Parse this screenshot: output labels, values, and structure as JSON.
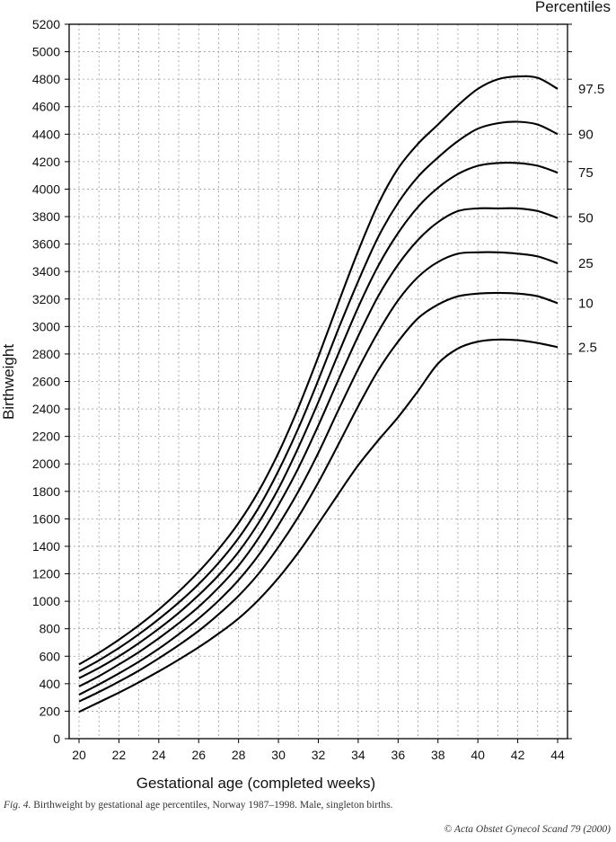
{
  "figure": {
    "caption_prefix": "Fig. 4.",
    "caption_text": "Birthweight by gestational age percentiles, Norway 1987–1998. Male, singleton births.",
    "copyright": "© Acta Obstet Gynecol Scand 79 (2000)"
  },
  "chart_data": {
    "type": "line",
    "xlabel": "Gestational age (completed weeks)",
    "ylabel": "Birthweight",
    "legend_title": "Percentiles",
    "legend_placement": "right",
    "grid": true,
    "xlim": [
      20,
      44
    ],
    "ylim": [
      0,
      5200
    ],
    "xticks": [
      20,
      22,
      24,
      26,
      28,
      30,
      32,
      34,
      36,
      38,
      40,
      42,
      44
    ],
    "yticks": [
      0,
      200,
      400,
      600,
      800,
      1000,
      1200,
      1400,
      1600,
      1800,
      2000,
      2200,
      2400,
      2600,
      2800,
      3000,
      3200,
      3400,
      3600,
      3800,
      4000,
      4200,
      4400,
      4600,
      4800,
      5000,
      5200
    ],
    "x": [
      20,
      21,
      22,
      23,
      24,
      25,
      26,
      27,
      28,
      29,
      30,
      31,
      32,
      33,
      34,
      35,
      36,
      37,
      38,
      39,
      40,
      41,
      42,
      43,
      44
    ],
    "series": [
      {
        "name": "97.5",
        "values": [
          540,
          625,
          720,
          825,
          940,
          1070,
          1215,
          1380,
          1570,
          1800,
          2080,
          2410,
          2780,
          3170,
          3550,
          3890,
          4150,
          4330,
          4470,
          4610,
          4730,
          4800,
          4820,
          4810,
          4730
        ]
      },
      {
        "name": "90",
        "values": [
          490,
          570,
          660,
          760,
          870,
          990,
          1125,
          1280,
          1460,
          1680,
          1950,
          2260,
          2610,
          2980,
          3330,
          3650,
          3900,
          4090,
          4230,
          4350,
          4440,
          4480,
          4490,
          4470,
          4400
        ]
      },
      {
        "name": "75",
        "values": [
          440,
          515,
          600,
          695,
          800,
          915,
          1045,
          1190,
          1360,
          1570,
          1820,
          2120,
          2450,
          2800,
          3140,
          3440,
          3680,
          3870,
          4010,
          4110,
          4170,
          4190,
          4190,
          4170,
          4120
        ]
      },
      {
        "name": "50",
        "values": [
          380,
          455,
          540,
          630,
          730,
          840,
          960,
          1100,
          1260,
          1460,
          1700,
          1970,
          2280,
          2610,
          2930,
          3220,
          3450,
          3630,
          3760,
          3840,
          3860,
          3860,
          3860,
          3840,
          3790
        ]
      },
      {
        "name": "25",
        "values": [
          320,
          395,
          475,
          560,
          655,
          760,
          875,
          1005,
          1155,
          1335,
          1555,
          1800,
          2080,
          2390,
          2690,
          2960,
          3190,
          3360,
          3470,
          3530,
          3540,
          3540,
          3530,
          3510,
          3460
        ]
      },
      {
        "name": "10",
        "values": [
          270,
          340,
          415,
          495,
          585,
          680,
          785,
          905,
          1040,
          1200,
          1395,
          1615,
          1865,
          2140,
          2420,
          2680,
          2890,
          3060,
          3160,
          3220,
          3240,
          3245,
          3240,
          3220,
          3170
        ]
      },
      {
        "name": "2.5",
        "values": [
          195,
          265,
          335,
          410,
          490,
          575,
          665,
          765,
          875,
          1010,
          1170,
          1355,
          1565,
          1780,
          1990,
          2170,
          2340,
          2530,
          2730,
          2840,
          2890,
          2905,
          2900,
          2880,
          2850
        ]
      }
    ]
  }
}
